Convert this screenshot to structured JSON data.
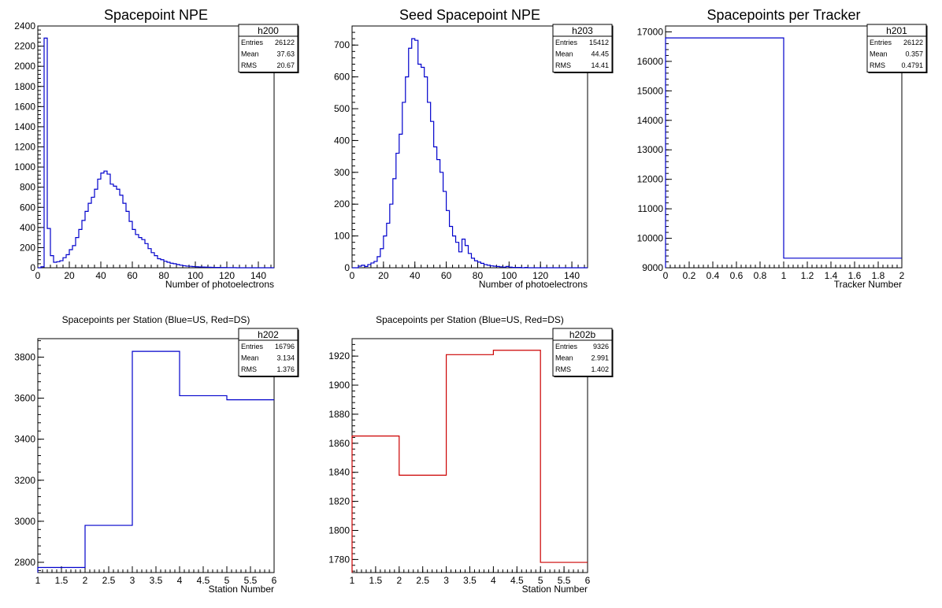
{
  "chart_data": [
    {
      "type": "histogram",
      "title": "Spacepoint NPE",
      "xlabel": "Number of photoelectrons",
      "ylabel": "",
      "xlim": [
        0,
        150
      ],
      "ylim": [
        0,
        2400
      ],
      "xticks": [
        0,
        20,
        40,
        60,
        80,
        100,
        120,
        140
      ],
      "yticks": [
        0,
        200,
        400,
        600,
        800,
        1000,
        1200,
        1400,
        1600,
        1800,
        2000,
        2200,
        2400
      ],
      "bin_width": 2,
      "color": "#0000cc",
      "bins_start": 0,
      "values": [
        0,
        10,
        2280,
        390,
        120,
        55,
        60,
        70,
        100,
        130,
        180,
        220,
        300,
        380,
        470,
        560,
        640,
        700,
        780,
        880,
        940,
        960,
        930,
        830,
        810,
        780,
        720,
        640,
        560,
        460,
        380,
        330,
        300,
        280,
        240,
        190,
        150,
        120,
        90,
        80,
        65,
        55,
        45,
        40,
        32,
        26,
        20,
        16,
        14,
        12,
        10,
        8,
        7,
        6,
        5,
        4,
        3,
        3,
        2,
        2,
        1,
        1,
        1,
        0,
        0,
        0,
        0,
        0,
        0,
        0,
        0,
        0,
        0,
        0,
        0
      ],
      "stats": {
        "name": "h200",
        "rows": [
          [
            "Entries",
            "26122"
          ],
          [
            "Mean",
            "37.63"
          ],
          [
            "RMS",
            "20.67"
          ]
        ]
      }
    },
    {
      "type": "histogram",
      "title": "Seed Spacepoint NPE",
      "xlabel": "Number of photoelectrons",
      "ylabel": "",
      "xlim": [
        0,
        150
      ],
      "ylim": [
        0,
        760
      ],
      "xticks": [
        0,
        20,
        40,
        60,
        80,
        100,
        120,
        140
      ],
      "yticks": [
        0,
        100,
        200,
        300,
        400,
        500,
        600,
        700
      ],
      "bin_width": 2,
      "color": "#0000cc",
      "bins_start": 0,
      "values": [
        0,
        0,
        5,
        8,
        4,
        10,
        15,
        20,
        35,
        60,
        100,
        140,
        200,
        280,
        360,
        420,
        520,
        600,
        690,
        720,
        715,
        640,
        630,
        600,
        520,
        460,
        380,
        340,
        300,
        240,
        180,
        130,
        100,
        80,
        50,
        90,
        70,
        45,
        30,
        22,
        18,
        14,
        10,
        8,
        6,
        5,
        4,
        3,
        2,
        4,
        2,
        1,
        1,
        1,
        0,
        1,
        0,
        0,
        0,
        0,
        0,
        0,
        0,
        0,
        0,
        0,
        0,
        0,
        0,
        0,
        0,
        0,
        0,
        0,
        0
      ],
      "stats": {
        "name": "h203",
        "rows": [
          [
            "Entries",
            "15412"
          ],
          [
            "Mean",
            "44.45"
          ],
          [
            "RMS",
            "14.41"
          ]
        ]
      }
    },
    {
      "type": "histogram",
      "title": "Spacepoints per Tracker",
      "xlabel": "Tracker Number",
      "ylabel": "",
      "xlim": [
        0,
        2
      ],
      "ylim": [
        9000,
        17200
      ],
      "xticks": [
        0,
        0.2,
        0.4,
        0.6,
        0.8,
        1,
        1.2,
        1.4,
        1.6,
        1.8,
        2
      ],
      "yticks": [
        9000,
        10000,
        11000,
        12000,
        13000,
        14000,
        15000,
        16000,
        17000
      ],
      "bin_width": 1,
      "color": "#0000cc",
      "bins_start": 0,
      "values": [
        16796,
        9326
      ],
      "stats": {
        "name": "h201",
        "rows": [
          [
            "Entries",
            "26122"
          ],
          [
            "Mean",
            "0.357"
          ],
          [
            "RMS",
            "0.4791"
          ]
        ]
      }
    },
    {
      "type": "histogram",
      "title": "Spacepoints per Station (Blue=US, Red=DS)",
      "xlabel": "Station Number",
      "ylabel": "",
      "xlim": [
        1,
        6
      ],
      "ylim": [
        2750,
        3890
      ],
      "xticks": [
        1,
        1.5,
        2,
        2.5,
        3,
        3.5,
        4,
        4.5,
        5,
        5.5,
        6
      ],
      "yticks": [
        2800,
        3000,
        3200,
        3400,
        3600,
        3800
      ],
      "bin_width": 1,
      "color": "#0000cc",
      "bins_start": 1,
      "values": [
        2775,
        2980,
        3828,
        3612,
        3592
      ],
      "stats": {
        "name": "h202",
        "rows": [
          [
            "Entries",
            "16796"
          ],
          [
            "Mean",
            "3.134"
          ],
          [
            "RMS",
            "1.376"
          ]
        ]
      }
    },
    {
      "type": "histogram",
      "title": "Spacepoints per Station (Blue=US, Red=DS)",
      "xlabel": "Station Number",
      "ylabel": "",
      "xlim": [
        1,
        6
      ],
      "ylim": [
        1771,
        1932
      ],
      "xticks": [
        1,
        1.5,
        2,
        2.5,
        3,
        3.5,
        4,
        4.5,
        5,
        5.5,
        6
      ],
      "yticks": [
        1780,
        1800,
        1820,
        1840,
        1860,
        1880,
        1900,
        1920
      ],
      "bin_width": 1,
      "color": "#cc0000",
      "bins_start": 1,
      "values": [
        1865,
        1838,
        1921,
        1924,
        1778
      ],
      "stats": {
        "name": "h202b",
        "rows": [
          [
            "Entries",
            "9326"
          ],
          [
            "Mean",
            "2.991"
          ],
          [
            "RMS",
            "1.402"
          ]
        ]
      }
    }
  ]
}
